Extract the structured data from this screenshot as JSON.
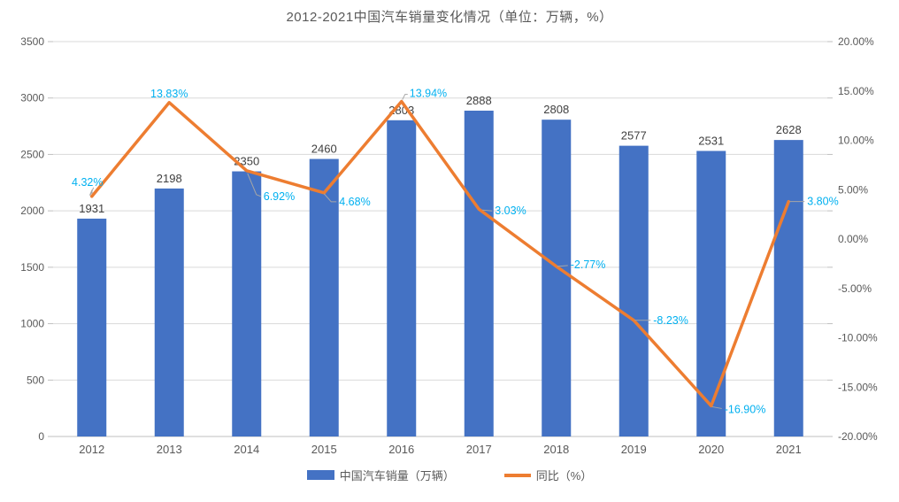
{
  "title": "2012-2021中国汽车销量变化情况（单位：万辆，%）",
  "chart_data": {
    "type": "combo-bar-line",
    "categories": [
      "2012",
      "2013",
      "2014",
      "2015",
      "2016",
      "2017",
      "2018",
      "2019",
      "2020",
      "2021"
    ],
    "series": [
      {
        "name": "中国汽车销量（万辆）",
        "type": "bar",
        "axis": "left",
        "values": [
          1931,
          2198,
          2350,
          2460,
          2803,
          2888,
          2808,
          2577,
          2531,
          2628
        ],
        "data_labels": [
          "1931",
          "2198",
          "2350",
          "2460",
          "2803",
          "2888",
          "2808",
          "2577",
          "2531",
          "2628"
        ]
      },
      {
        "name": "同比（%）",
        "type": "line",
        "axis": "right",
        "values": [
          4.32,
          13.83,
          6.92,
          4.68,
          13.94,
          3.03,
          -2.77,
          -8.23,
          -16.9,
          3.8
        ],
        "data_labels": [
          "4.32%",
          "13.83%",
          "6.92%",
          "4.68%",
          "13.94%",
          "3.03%",
          "-2.77%",
          "-8.23%",
          "-16.90%",
          "3.80%"
        ]
      }
    ],
    "left_axis": {
      "min": 0,
      "max": 3500,
      "step": 500,
      "ticks": [
        "0",
        "500",
        "1000",
        "1500",
        "2000",
        "2500",
        "3000",
        "3500"
      ]
    },
    "right_axis": {
      "min": -20,
      "max": 20,
      "step": 5,
      "ticks": [
        "-20.00%",
        "-15.00%",
        "-10.00%",
        "-5.00%",
        "0.00%",
        "5.00%",
        "10.00%",
        "15.00%",
        "20.00%"
      ]
    },
    "grid": true,
    "legend_position": "bottom-center",
    "colors": {
      "bar": "#4472C4",
      "line": "#ED7D31",
      "pct_label": "#00B0F0",
      "value_label": "#404040",
      "axis_text": "#595959",
      "grid": "#D9D9D9",
      "axis_line": "#BFBFBF",
      "leader": "#A6A6A6"
    }
  }
}
